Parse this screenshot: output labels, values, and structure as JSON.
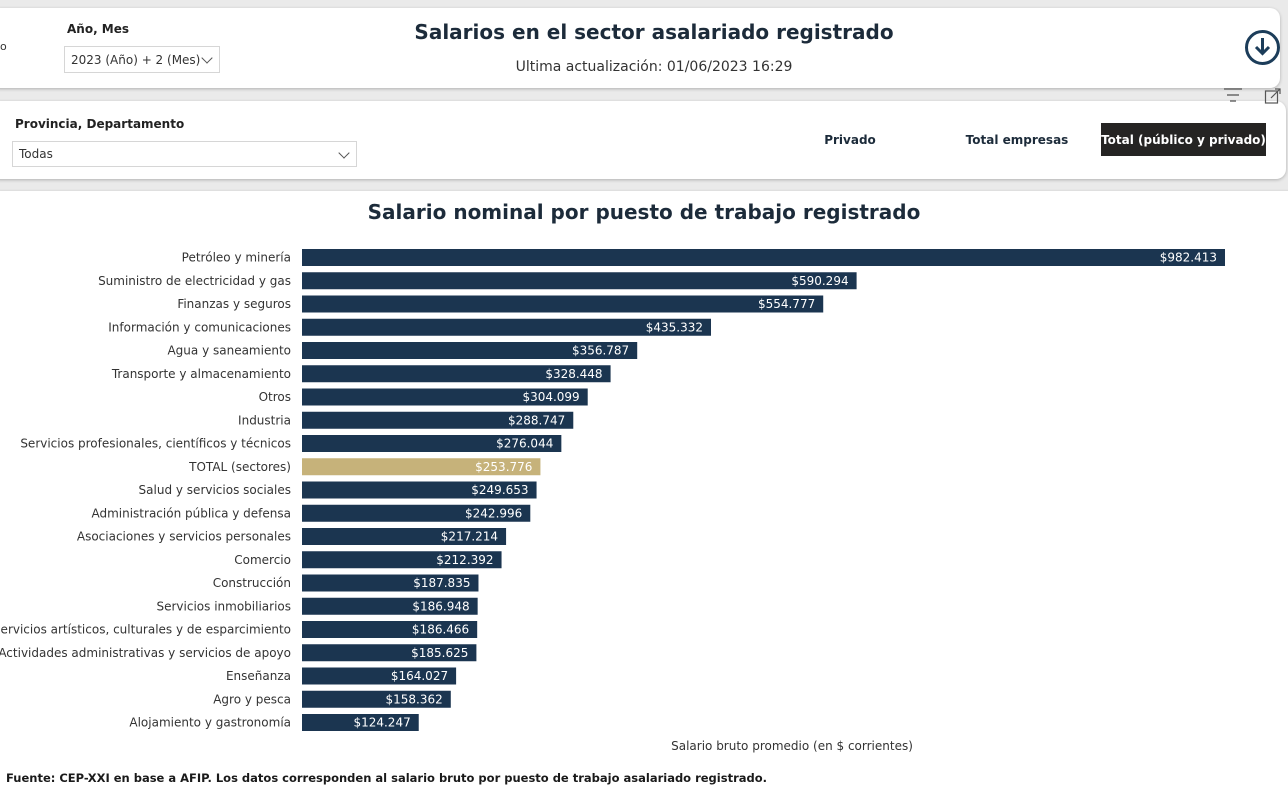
{
  "header": {
    "cut_label": "o",
    "date_filter_label": "Año, Mes",
    "date_filter_value": "2023 (Año) + 2 (Mes)",
    "title": "Salarios en el sector asalariado registrado",
    "last_update": "Ultima actualización: 01/06/2023 16:29"
  },
  "filters": {
    "province_label": "Provincia, Departamento",
    "province_value": "Todas",
    "tabs": [
      {
        "label": "Privado"
      },
      {
        "label": "Total empresas"
      },
      {
        "label": "Total (público y privado)",
        "selected": true
      }
    ]
  },
  "colors": {
    "bar": "#1b3550",
    "highlight": "#c6b27a"
  },
  "chart_data": {
    "type": "bar",
    "orientation": "horizontal",
    "title": "Salario nominal por puesto de trabajo registrado",
    "xlabel": "Salario bruto promedio (en $ corrientes)",
    "ylabel": "",
    "xlim": [
      0,
      982413
    ],
    "highlight_category": "TOTAL (sectores)",
    "categories": [
      "Petróleo y minería",
      "Suministro de electricidad y gas",
      "Finanzas y seguros",
      "Información y comunicaciones",
      "Agua y saneamiento",
      "Transporte y almacenamiento",
      "Otros",
      "Industria",
      "Servicios profesionales, científicos y técnicos",
      "TOTAL (sectores)",
      "Salud y servicios sociales",
      "Administración pública y defensa",
      "Asociaciones y servicios personales",
      "Comercio",
      "Construcción",
      "Servicios inmobiliarios",
      "Servicios artísticos, culturales y de esparcimiento",
      "Actividades administrativas y servicios de apoyo",
      "Enseñanza",
      "Agro y pesca",
      "Alojamiento y gastronomía"
    ],
    "values": [
      982413,
      590294,
      554777,
      435332,
      356787,
      328448,
      304099,
      288747,
      276044,
      253776,
      249653,
      242996,
      217214,
      212392,
      187835,
      186948,
      186466,
      185625,
      164027,
      158362,
      124247
    ],
    "data_labels": [
      "$982.413",
      "$590.294",
      "$554.777",
      "$435.332",
      "$356.787",
      "$328.448",
      "$304.099",
      "$288.747",
      "$276.044",
      "$253.776",
      "$249.653",
      "$242.996",
      "$217.214",
      "$212.392",
      "$187.835",
      "$186.948",
      "$186.466",
      "$185.625",
      "$164.027",
      "$158.362",
      "$124.247"
    ]
  },
  "footer": {
    "source": "Fuente: CEP-XXI en base a AFIP. Los datos corresponden al salario bruto por puesto de trabajo asalariado registrado."
  }
}
